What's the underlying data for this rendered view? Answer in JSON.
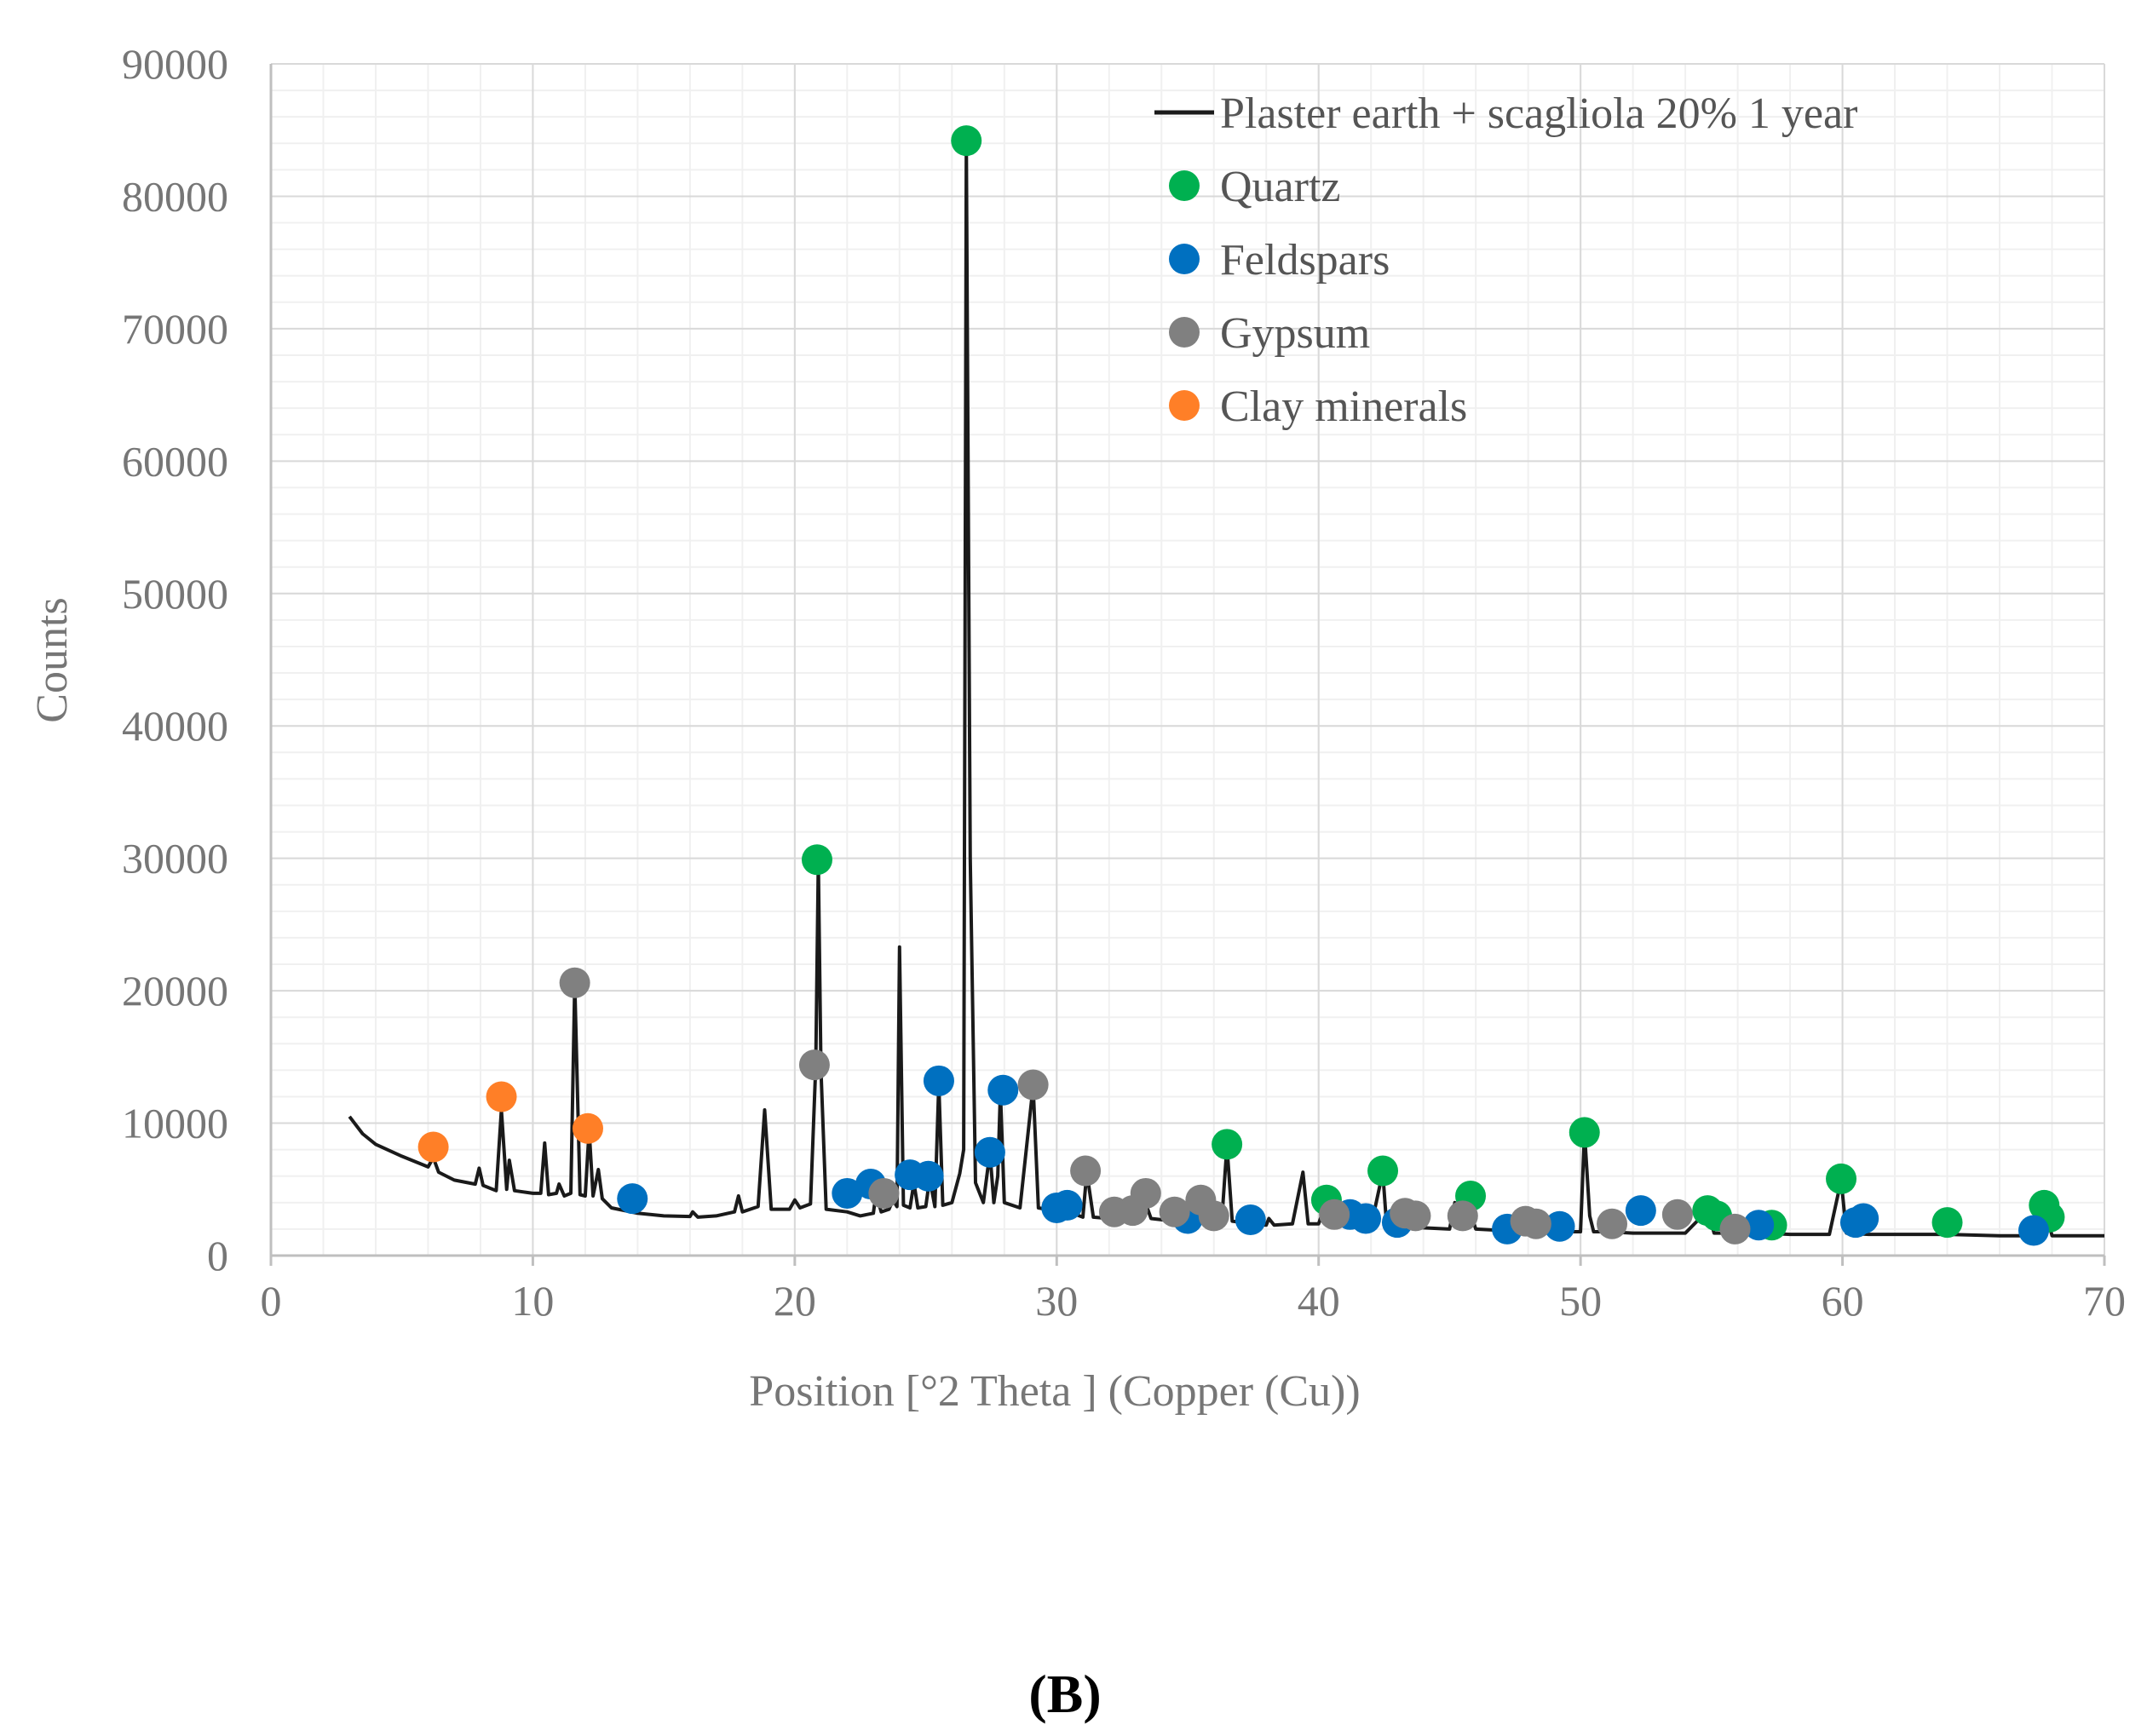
{
  "chart_data": {
    "type": "line",
    "title": "",
    "panel_label": "(B)",
    "xlabel": "Position [°2 Theta ] (Copper (Cu))",
    "ylabel": "Counts",
    "xlim": [
      0,
      70
    ],
    "ylim": [
      0,
      90000
    ],
    "x_ticks": [
      0,
      10,
      20,
      30,
      40,
      50,
      60,
      70
    ],
    "y_ticks": [
      0,
      10000,
      20000,
      30000,
      40000,
      50000,
      60000,
      70000,
      80000,
      90000
    ],
    "x_minor_step": 2,
    "y_minor_step": 2000,
    "grid": true,
    "legend_position": "top-right",
    "series": [
      {
        "name": "Plaster earth + scagliola 20% 1 year",
        "color": "#1a1a1a",
        "points": [
          [
            3,
            10500
          ],
          [
            3.5,
            9200
          ],
          [
            4,
            8400
          ],
          [
            5,
            7500
          ],
          [
            6,
            6700
          ],
          [
            6.2,
            7400
          ],
          [
            6.4,
            6300
          ],
          [
            7,
            5700
          ],
          [
            7.8,
            5400
          ],
          [
            7.95,
            6600
          ],
          [
            8.1,
            5300
          ],
          [
            8.6,
            4900
          ],
          [
            8.8,
            11000
          ],
          [
            9.0,
            5000
          ],
          [
            9.1,
            7200
          ],
          [
            9.3,
            4900
          ],
          [
            10,
            4700
          ],
          [
            10.3,
            4700
          ],
          [
            10.45,
            8500
          ],
          [
            10.6,
            4600
          ],
          [
            10.9,
            4700
          ],
          [
            11.0,
            5400
          ],
          [
            11.2,
            4500
          ],
          [
            11.45,
            4700
          ],
          [
            11.6,
            20600
          ],
          [
            11.8,
            4600
          ],
          [
            12.0,
            4500
          ],
          [
            12.15,
            9500
          ],
          [
            12.3,
            4500
          ],
          [
            12.5,
            6500
          ],
          [
            12.65,
            4300
          ],
          [
            13,
            3600
          ],
          [
            14,
            3200
          ],
          [
            15,
            3000
          ],
          [
            16,
            2950
          ],
          [
            16.1,
            3300
          ],
          [
            16.3,
            2900
          ],
          [
            17,
            3000
          ],
          [
            17.7,
            3300
          ],
          [
            17.85,
            4500
          ],
          [
            18.0,
            3300
          ],
          [
            18.6,
            3700
          ],
          [
            18.85,
            11000
          ],
          [
            19.1,
            3500
          ],
          [
            19.8,
            3500
          ],
          [
            20.0,
            4200
          ],
          [
            20.2,
            3600
          ],
          [
            20.6,
            3900
          ],
          [
            20.8,
            14400
          ],
          [
            20.9,
            29800
          ],
          [
            21.0,
            14000
          ],
          [
            21.2,
            3500
          ],
          [
            22,
            3300
          ],
          [
            22.5,
            3000
          ],
          [
            23.0,
            3200
          ],
          [
            23.1,
            4700
          ],
          [
            23.3,
            3300
          ],
          [
            23.6,
            3500
          ],
          [
            23.75,
            4200
          ],
          [
            23.9,
            3700
          ],
          [
            24.0,
            23300
          ],
          [
            24.15,
            3800
          ],
          [
            24.4,
            3600
          ],
          [
            24.55,
            5500
          ],
          [
            24.7,
            3600
          ],
          [
            25.0,
            3700
          ],
          [
            25.15,
            5800
          ],
          [
            25.35,
            3700
          ],
          [
            25.5,
            13000
          ],
          [
            25.65,
            3800
          ],
          [
            26.0,
            4000
          ],
          [
            26.3,
            6200
          ],
          [
            26.45,
            8000
          ],
          [
            26.55,
            84100
          ],
          [
            26.7,
            30000
          ],
          [
            26.9,
            5500
          ],
          [
            27.2,
            4000
          ],
          [
            27.45,
            7800
          ],
          [
            27.6,
            4000
          ],
          [
            27.75,
            6000
          ],
          [
            27.85,
            12400
          ],
          [
            28.0,
            4000
          ],
          [
            28.6,
            3600
          ],
          [
            29.1,
            12800
          ],
          [
            29.3,
            3600
          ],
          [
            29.6,
            3500
          ],
          [
            30,
            3300
          ],
          [
            30.3,
            3600
          ],
          [
            30.6,
            3200
          ],
          [
            31,
            2900
          ],
          [
            31.15,
            6300
          ],
          [
            31.4,
            2900
          ],
          [
            32,
            2800
          ],
          [
            32.4,
            3000
          ],
          [
            33,
            2900
          ],
          [
            33.3,
            4500
          ],
          [
            33.6,
            2800
          ],
          [
            34.5,
            2600
          ],
          [
            35,
            2600
          ],
          [
            35.6,
            4300
          ],
          [
            35.9,
            2600
          ],
          [
            36.3,
            2600
          ],
          [
            36.5,
            8300
          ],
          [
            36.7,
            2600
          ],
          [
            37.5,
            2400
          ],
          [
            38,
            2300
          ],
          [
            38.1,
            2800
          ],
          [
            38.3,
            2300
          ],
          [
            39.0,
            2400
          ],
          [
            39.4,
            6300
          ],
          [
            39.6,
            2400
          ],
          [
            40.0,
            2400
          ],
          [
            40.3,
            4100
          ],
          [
            40.5,
            2300
          ],
          [
            42.0,
            2200
          ],
          [
            42.45,
            6300
          ],
          [
            42.6,
            2200
          ],
          [
            43.5,
            2200
          ],
          [
            44,
            2100
          ],
          [
            45,
            2000
          ],
          [
            45.2,
            4000
          ],
          [
            45.4,
            2000
          ],
          [
            45.8,
            3200
          ],
          [
            46.0,
            2000
          ],
          [
            47,
            1900
          ],
          [
            48,
            1800
          ],
          [
            49,
            1800
          ],
          [
            50.0,
            1800
          ],
          [
            50.15,
            9300
          ],
          [
            50.35,
            3000
          ],
          [
            50.5,
            1800
          ],
          [
            51,
            1800
          ],
          [
            52,
            1700
          ],
          [
            53,
            1700
          ],
          [
            54,
            1700
          ],
          [
            54.85,
            3400
          ],
          [
            55.1,
            1700
          ],
          [
            56,
            1700
          ],
          [
            57,
            1700
          ],
          [
            58,
            1600
          ],
          [
            59.5,
            1600
          ],
          [
            59.95,
            5700
          ],
          [
            60.15,
            1700
          ],
          [
            61,
            1600
          ],
          [
            62,
            1600
          ],
          [
            64,
            1600
          ],
          [
            66,
            1500
          ],
          [
            67.7,
            1500
          ],
          [
            67.8,
            3100
          ],
          [
            68.0,
            1500
          ],
          [
            70,
            1500
          ]
        ]
      }
    ],
    "markers": [
      {
        "name": "Quartz",
        "color": "#00b050",
        "points": [
          [
            20.85,
            29900
          ],
          [
            26.55,
            84200
          ],
          [
            36.5,
            8400
          ],
          [
            40.3,
            4200
          ],
          [
            42.45,
            6400
          ],
          [
            45.8,
            4500
          ],
          [
            50.15,
            9300
          ],
          [
            54.85,
            3400
          ],
          [
            55.2,
            3000
          ],
          [
            57.3,
            2300
          ],
          [
            59.95,
            5800
          ],
          [
            64.0,
            2500
          ],
          [
            67.7,
            3800
          ],
          [
            67.9,
            2900
          ]
        ]
      },
      {
        "name": "Feldspars",
        "color": "#0070c0",
        "points": [
          [
            13.8,
            4300
          ],
          [
            22.0,
            4700
          ],
          [
            22.9,
            5400
          ],
          [
            24.4,
            6100
          ],
          [
            25.1,
            6000
          ],
          [
            25.5,
            13200
          ],
          [
            27.45,
            7800
          ],
          [
            27.95,
            12500
          ],
          [
            30.0,
            3600
          ],
          [
            30.4,
            3800
          ],
          [
            35.0,
            2800
          ],
          [
            37.4,
            2700
          ],
          [
            41.2,
            3100
          ],
          [
            41.8,
            2800
          ],
          [
            43.0,
            2500
          ],
          [
            47.2,
            2000
          ],
          [
            49.2,
            2200
          ],
          [
            52.3,
            3400
          ],
          [
            56.8,
            2300
          ],
          [
            60.5,
            2500
          ],
          [
            60.8,
            2800
          ],
          [
            67.3,
            1900
          ]
        ]
      },
      {
        "name": "Gypsum",
        "color": "#808080",
        "points": [
          [
            11.6,
            20600
          ],
          [
            20.75,
            14400
          ],
          [
            23.4,
            4700
          ],
          [
            29.1,
            12900
          ],
          [
            31.1,
            6400
          ],
          [
            32.2,
            3300
          ],
          [
            32.9,
            3400
          ],
          [
            33.4,
            4700
          ],
          [
            34.5,
            3300
          ],
          [
            35.5,
            4200
          ],
          [
            36.0,
            3000
          ],
          [
            40.6,
            3100
          ],
          [
            43.3,
            3200
          ],
          [
            43.7,
            3000
          ],
          [
            45.5,
            3000
          ],
          [
            47.9,
            2600
          ],
          [
            48.3,
            2400
          ],
          [
            51.2,
            2400
          ],
          [
            53.7,
            3100
          ],
          [
            55.9,
            2000
          ]
        ]
      },
      {
        "name": "Clay minerals",
        "color": "#ff7f27",
        "points": [
          [
            6.2,
            8200
          ],
          [
            8.8,
            12000
          ],
          [
            12.1,
            9600
          ]
        ]
      }
    ]
  }
}
